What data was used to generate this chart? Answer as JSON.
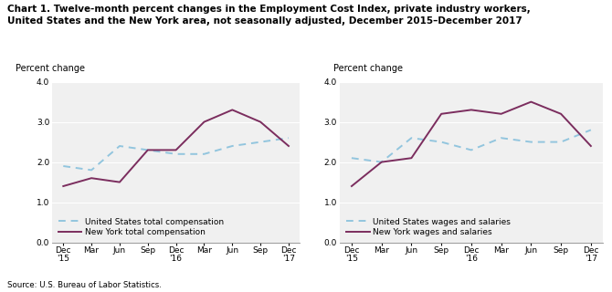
{
  "title_line1": "Chart 1. Twelve-month percent changes in the Employment Cost Index, private industry workers,",
  "title_line2": "United States and the New York area, not seasonally adjusted, December 2015–December 2017",
  "source": "Source: U.S. Bureau of Labor Statistics.",
  "ylabel": "Percent change",
  "x_labels": [
    "Dec\n'15",
    "Mar",
    "Jun",
    "Sep",
    "Dec\n'16",
    "Mar",
    "Jun",
    "Sep",
    "Dec\n'17"
  ],
  "ylim": [
    0.0,
    4.0
  ],
  "yticks": [
    0.0,
    1.0,
    2.0,
    3.0,
    4.0
  ],
  "chart1": {
    "us_total_comp": [
      1.9,
      1.8,
      2.4,
      2.3,
      2.2,
      2.2,
      2.4,
      2.5,
      2.6
    ],
    "ny_total_comp": [
      1.4,
      1.6,
      1.5,
      2.3,
      2.3,
      3.0,
      3.3,
      3.0,
      2.4
    ],
    "legend1": "United States total compensation",
    "legend2": "New York total compensation"
  },
  "chart2": {
    "us_wages_sal": [
      2.1,
      2.0,
      2.6,
      2.5,
      2.3,
      2.6,
      2.5,
      2.5,
      2.8
    ],
    "ny_wages_sal": [
      1.4,
      2.0,
      2.1,
      3.2,
      3.3,
      3.2,
      3.5,
      3.2,
      2.4
    ],
    "legend1": "United States wages and salaries",
    "legend2": "New York wages and salaries"
  },
  "us_color": "#92c5de",
  "ny_color": "#7b2d5e",
  "linewidth": 1.4,
  "background_color": "#f0f0f0",
  "grid_color": "#ffffff",
  "title_fontsize": 7.5,
  "label_fontsize": 7.0,
  "tick_fontsize": 6.5,
  "legend_fontsize": 6.5
}
